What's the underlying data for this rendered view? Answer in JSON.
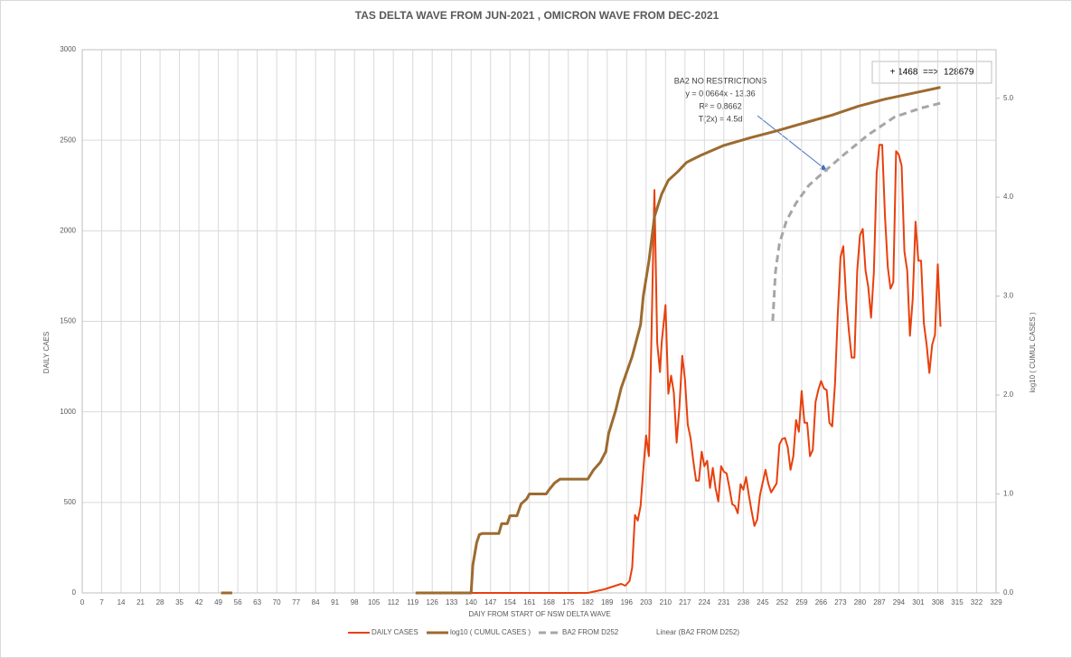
{
  "chart_data": {
    "type": "line",
    "title": "TAS DELTA WAVE FROM JUN-2021 , OMICRON WAVE FROM DEC-2021",
    "xlabel": "DAIY FROM START OF NSW DELTA WAVE",
    "ylabel": "DAILY CAES",
    "y2label": "log10 ( CUMUL CASES )",
    "xlim": [
      0,
      329
    ],
    "xticks": [
      0,
      7,
      14,
      21,
      28,
      35,
      42,
      49,
      56,
      63,
      70,
      77,
      84,
      91,
      98,
      105,
      112,
      119,
      126,
      133,
      140,
      147,
      154,
      161,
      168,
      175,
      182,
      189,
      196,
      203,
      210,
      217,
      224,
      231,
      238,
      245,
      252,
      259,
      266,
      273,
      280,
      287,
      294,
      301,
      308,
      315,
      322,
      329
    ],
    "ylim": [
      0,
      3000
    ],
    "yticks": [
      0,
      500,
      1000,
      1500,
      2000,
      2500,
      3000
    ],
    "y2lim": [
      0,
      5.49
    ],
    "y2ticks": [
      {
        "value": 0,
        "label": "0.0"
      },
      {
        "value": 1,
        "label": "1.0"
      },
      {
        "value": 2,
        "label": "2.0"
      },
      {
        "value": 3,
        "label": "3.0"
      },
      {
        "value": 4,
        "label": "4.0"
      },
      {
        "value": 5,
        "label": "5.0"
      }
    ],
    "grid": true,
    "legend": "bottom",
    "annotations": [
      "BA2 NO RESTRICTIONS",
      "y = 0.0664x - 13.36",
      "R² = 0.8662",
      "T(2x)  = 4.5d"
    ],
    "callout": "+ 1468  ==>  128679",
    "series": [
      {
        "name": "DAILY CASES",
        "color": "#e8400c",
        "width": 2,
        "x": [
          140,
          182,
          188,
          192,
          194,
          195.5,
          197,
          198,
          199,
          200,
          201,
          202,
          203,
          204,
          205,
          206,
          207,
          208,
          208.6,
          210,
          211,
          212,
          213,
          214,
          215,
          216,
          217,
          218,
          219,
          220,
          221,
          222,
          223,
          224,
          225,
          226,
          227,
          228,
          229,
          230,
          231,
          232,
          233,
          234,
          235,
          236,
          237,
          238,
          239,
          240,
          241,
          242,
          243,
          244,
          246,
          247,
          248,
          250,
          251,
          252,
          253,
          254,
          255,
          256,
          257,
          258,
          259,
          260,
          261,
          262,
          263,
          264,
          265,
          266,
          267,
          268,
          269,
          270,
          271,
          272,
          273,
          274,
          275,
          276,
          277,
          278,
          279,
          280,
          281,
          282,
          283,
          284,
          285,
          286,
          287,
          288,
          289,
          290,
          291,
          292,
          293,
          294,
          295,
          296,
          297,
          298,
          299,
          300,
          301,
          302,
          303,
          304,
          305,
          306,
          307,
          308,
          309
        ],
        "values": [
          0,
          0,
          20,
          40,
          50,
          40,
          65,
          140,
          430,
          400,
          480,
          680,
          870,
          755,
          1480,
          2225,
          1380,
          1220,
          1380,
          1590,
          1100,
          1200,
          1105,
          830,
          1030,
          1310,
          1180,
          930,
          855,
          730,
          620,
          620,
          780,
          700,
          730,
          580,
          690,
          580,
          505,
          700,
          670,
          660,
          580,
          490,
          480,
          440,
          600,
          570,
          640,
          540,
          450,
          370,
          405,
          540,
          680,
          605,
          555,
          605,
          820,
          850,
          855,
          805,
          680,
          755,
          955,
          890,
          1115,
          940,
          940,
          755,
          790,
          1055,
          1120,
          1170,
          1130,
          1120,
          940,
          920,
          1155,
          1530,
          1855,
          1915,
          1625,
          1450,
          1300,
          1300,
          1780,
          1975,
          2010,
          1780,
          1690,
          1520,
          1770,
          2320,
          2475,
          2475,
          2080,
          1800,
          1680,
          1715,
          2440,
          2420,
          2360,
          1885,
          1780,
          1420,
          1625,
          2050,
          1835,
          1835,
          1490,
          1370,
          1215,
          1370,
          1425,
          1815,
          1470
        ]
      },
      {
        "name": "log10 ( CUMUL CASES )",
        "color": "#9c6b30",
        "width": 3,
        "axis": "y2",
        "x": [
          50,
          54,
          null,
          120,
          140,
          140.6,
          142,
          143,
          144,
          150,
          151,
          153,
          154,
          156.5,
          158,
          160,
          161,
          167,
          168,
          170,
          172,
          182,
          184,
          186.5,
          188.5,
          189.5,
          192,
          194,
          198,
          201,
          202,
          204,
          206,
          208.6,
          211,
          214.5,
          217.5,
          222.5,
          230.7,
          240.5,
          250,
          260,
          270,
          279.5,
          289,
          299,
          309
        ],
        "values": [
          0,
          0,
          null,
          0,
          0,
          0.28,
          0.51,
          0.59,
          0.6,
          0.6,
          0.7,
          0.7,
          0.78,
          0.78,
          0.9,
          0.95,
          1.0,
          1.0,
          1.04,
          1.11,
          1.15,
          1.15,
          1.24,
          1.32,
          1.43,
          1.61,
          1.84,
          2.07,
          2.39,
          2.71,
          3.0,
          3.35,
          3.8,
          4.03,
          4.17,
          4.26,
          4.35,
          4.42,
          4.52,
          4.6,
          4.67,
          4.75,
          4.83,
          4.92,
          4.99,
          5.05,
          5.11
        ]
      },
      {
        "name": "BA2 FROM D252",
        "color": "#a6a6a6",
        "width": 3,
        "axis": "y2",
        "dash": true,
        "x": [
          248.6,
          249.6,
          251,
          253.5,
          257,
          261.6,
          268,
          274.7,
          283,
          292.5,
          302,
          309
        ],
        "values": [
          2.75,
          3.25,
          3.53,
          3.76,
          3.94,
          4.12,
          4.28,
          4.44,
          4.63,
          4.81,
          4.9,
          4.95
        ]
      },
      {
        "name": "Linear (BA2 FROM D252)",
        "color": "#a6a6a6",
        "width": 1,
        "axis": "y2",
        "x": [],
        "values": []
      }
    ]
  }
}
